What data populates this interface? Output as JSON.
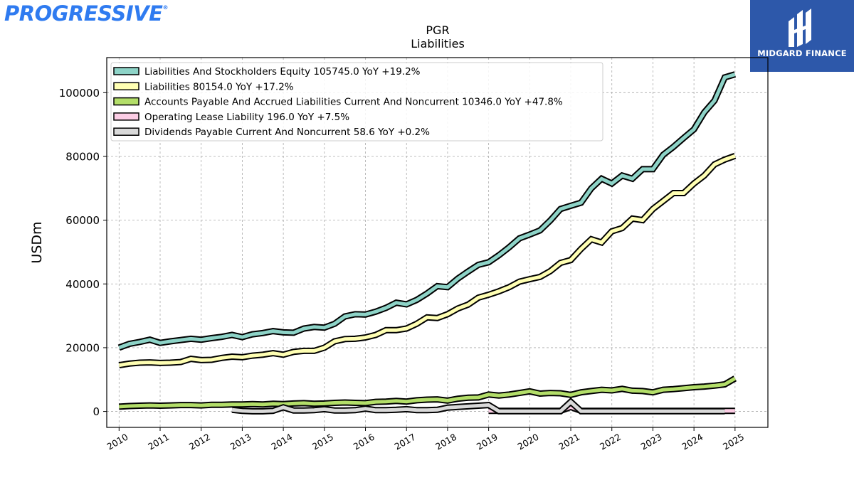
{
  "brand": {
    "logo_text": "PROGRESSIVE",
    "logo_reg": "®",
    "badge_text": "MIDGARD FINANCE"
  },
  "colors": {
    "equity": "#8dd3c7",
    "liabilities": "#ffffb3",
    "accounts_payable": "#b3de69",
    "lease": "#fccde5",
    "dividends": "#d9d9d9",
    "outline": "#000000",
    "badge": "#2d58aa",
    "logo": "#2f7bf0"
  },
  "chart_data": {
    "type": "line",
    "title": "PGR",
    "subtitle": "Liabilities",
    "ylabel": "USDm",
    "xlabel": "",
    "xlim": [
      2009.7,
      2025.8
    ],
    "ylim": [
      -5000,
      111000
    ],
    "yticks": [
      0,
      20000,
      40000,
      60000,
      80000,
      100000
    ],
    "xticks": [
      2010,
      2011,
      2012,
      2013,
      2014,
      2015,
      2016,
      2017,
      2018,
      2019,
      2020,
      2021,
      2022,
      2023,
      2024,
      2025
    ],
    "grid": true,
    "legend_position": "upper-left",
    "series": [
      {
        "name": "Liabilities And Stockholders Equity",
        "legend": "Liabilities And Stockholders Equity  105745.0 YoY +19.2%",
        "color_key": "equity",
        "x": [
          2010.0,
          2010.25,
          2010.5,
          2010.75,
          2011.0,
          2011.25,
          2011.5,
          2011.75,
          2012.0,
          2012.25,
          2012.5,
          2012.75,
          2013.0,
          2013.25,
          2013.5,
          2013.75,
          2014.0,
          2014.25,
          2014.5,
          2014.75,
          2015.0,
          2015.25,
          2015.5,
          2015.75,
          2016.0,
          2016.25,
          2016.5,
          2016.75,
          2017.0,
          2017.25,
          2017.5,
          2017.75,
          2018.0,
          2018.25,
          2018.5,
          2018.75,
          2019.0,
          2019.25,
          2019.5,
          2019.75,
          2020.0,
          2020.25,
          2020.5,
          2020.75,
          2021.0,
          2021.25,
          2021.5,
          2021.75,
          2022.0,
          2022.25,
          2022.5,
          2022.75,
          2023.0,
          2023.25,
          2023.5,
          2023.75,
          2024.0,
          2024.25,
          2024.5,
          2024.75,
          2025.0
        ],
        "y": [
          20000,
          21200,
          21800,
          22500,
          21500,
          22000,
          22400,
          22800,
          22500,
          23000,
          23400,
          24000,
          23300,
          24200,
          24600,
          25200,
          24800,
          24700,
          26000,
          26500,
          26300,
          27500,
          29800,
          30500,
          30400,
          31300,
          32500,
          34100,
          33600,
          35000,
          37000,
          39300,
          39000,
          41700,
          43900,
          46000,
          46800,
          49000,
          51500,
          54300,
          55500,
          56800,
          59900,
          63500,
          64500,
          65500,
          70000,
          73000,
          71500,
          74000,
          73000,
          76000,
          76000,
          80500,
          83000,
          85800,
          88500,
          93800,
          97500,
          104800,
          105745
        ]
      },
      {
        "name": "Liabilities",
        "legend": "Liabilities  80154.0 YoY +17.2%",
        "color_key": "liabilities",
        "x": [
          2010.0,
          2010.25,
          2010.5,
          2010.75,
          2011.0,
          2011.25,
          2011.5,
          2011.75,
          2012.0,
          2012.25,
          2012.5,
          2012.75,
          2013.0,
          2013.25,
          2013.5,
          2013.75,
          2014.0,
          2014.25,
          2014.5,
          2014.75,
          2015.0,
          2015.25,
          2015.5,
          2015.75,
          2016.0,
          2016.25,
          2016.5,
          2016.75,
          2017.0,
          2017.25,
          2017.5,
          2017.75,
          2018.0,
          2018.25,
          2018.5,
          2018.75,
          2019.0,
          2019.25,
          2019.5,
          2019.75,
          2020.0,
          2020.25,
          2020.5,
          2020.75,
          2021.0,
          2021.25,
          2021.5,
          2021.75,
          2022.0,
          2022.25,
          2022.5,
          2022.75,
          2023.0,
          2023.25,
          2023.5,
          2023.75,
          2024.0,
          2024.25,
          2024.5,
          2024.75,
          2025.0
        ],
        "y": [
          14500,
          15000,
          15300,
          15400,
          15200,
          15300,
          15500,
          16500,
          16100,
          16200,
          16800,
          17200,
          17000,
          17500,
          17800,
          18300,
          17800,
          18700,
          19000,
          19000,
          20000,
          22000,
          22700,
          22800,
          23200,
          24000,
          25500,
          25500,
          26000,
          27500,
          29500,
          29300,
          30500,
          32300,
          33500,
          35700,
          36600,
          37700,
          39000,
          40700,
          41500,
          42200,
          44000,
          46600,
          47500,
          51000,
          54000,
          53000,
          56500,
          57500,
          60500,
          60000,
          63500,
          66000,
          68500,
          68500,
          71500,
          74000,
          77500,
          79000,
          80154
        ]
      },
      {
        "name": "Accounts Payable And Accrued Liabilities Current And Noncurrent",
        "legend": "Accounts Payable And Accrued Liabilities Current And Noncurrent  10346.0 YoY +47.8%",
        "color_key": "accounts_payable",
        "x": [
          2010.0,
          2010.25,
          2010.5,
          2010.75,
          2011.0,
          2011.25,
          2011.5,
          2011.75,
          2012.0,
          2012.25,
          2012.5,
          2012.75,
          2013.0,
          2013.25,
          2013.5,
          2013.75,
          2014.0,
          2014.25,
          2014.5,
          2014.75,
          2015.0,
          2015.25,
          2015.5,
          2015.75,
          2016.0,
          2016.25,
          2016.5,
          2016.75,
          2017.0,
          2017.25,
          2017.5,
          2017.75,
          2018.0,
          2018.25,
          2018.5,
          2018.75,
          2019.0,
          2019.25,
          2019.5,
          2019.75,
          2020.0,
          2020.25,
          2020.5,
          2020.75,
          2021.0,
          2021.25,
          2021.5,
          2021.75,
          2022.0,
          2022.25,
          2022.5,
          2022.75,
          2023.0,
          2023.25,
          2023.5,
          2023.75,
          2024.0,
          2024.25,
          2024.5,
          2024.75,
          2025.0
        ],
        "y": [
          1500,
          1700,
          1800,
          1900,
          1800,
          1900,
          2000,
          2000,
          1900,
          2100,
          2100,
          2200,
          2200,
          2300,
          2200,
          2400,
          2300,
          2500,
          2600,
          2400,
          2500,
          2700,
          2800,
          2700,
          2600,
          3000,
          3100,
          3300,
          3100,
          3500,
          3700,
          3800,
          3400,
          4000,
          4300,
          4400,
          5300,
          5000,
          5300,
          5800,
          6300,
          5600,
          5800,
          5700,
          5200,
          6000,
          6400,
          6800,
          6600,
          7100,
          6500,
          6400,
          6000,
          6800,
          7000,
          7300,
          7600,
          7800,
          8100,
          8500,
          10346
        ]
      },
      {
        "name": "Operating Lease Liability",
        "legend": "Operating Lease Liability  196.0 YoY +7.5%",
        "color_key": "lease",
        "x": [
          2019.0,
          2019.25,
          2019.5,
          2019.75,
          2020.0,
          2020.25,
          2020.5,
          2020.75,
          2021.0,
          2021.25,
          2021.5,
          2021.75,
          2022.0,
          2022.25,
          2022.5,
          2022.75,
          2023.0,
          2023.25,
          2023.5,
          2023.75,
          2024.0,
          2024.25,
          2024.5,
          2024.75,
          2025.0
        ],
        "y": [
          180,
          180,
          180,
          180,
          180,
          180,
          180,
          180,
          1400,
          180,
          180,
          180,
          180,
          180,
          180,
          180,
          180,
          180,
          180,
          180,
          180,
          180,
          182,
          185,
          196
        ]
      },
      {
        "name": "Dividends Payable Current And Noncurrent",
        "legend": "Dividends Payable Current And Noncurrent  58.6 YoY +0.2%",
        "color_key": "dividends",
        "x": [
          2012.75,
          2013.0,
          2013.25,
          2013.5,
          2013.75,
          2014.0,
          2014.25,
          2014.5,
          2014.75,
          2015.0,
          2015.25,
          2015.5,
          2015.75,
          2016.0,
          2016.25,
          2016.5,
          2016.75,
          2017.0,
          2017.25,
          2017.5,
          2017.75,
          2018.0,
          2018.25,
          2018.5,
          2018.75,
          2019.0,
          2019.25,
          2019.5,
          2019.75,
          2020.0,
          2020.25,
          2020.5,
          2020.75,
          2021.0,
          2021.25,
          2021.5,
          2021.75,
          2022.0,
          2022.25,
          2022.5,
          2022.75,
          2023.0,
          2023.25,
          2023.5,
          2023.75,
          2024.0,
          2024.25,
          2024.5,
          2024.75
        ],
        "y": [
          500,
          200,
          50,
          50,
          200,
          1300,
          300,
          300,
          400,
          700,
          300,
          300,
          400,
          900,
          400,
          400,
          500,
          700,
          400,
          400,
          500,
          1200,
          1400,
          1600,
          1800,
          2000,
          60,
          60,
          60,
          60,
          60,
          60,
          60,
          3000,
          60,
          60,
          60,
          60,
          60,
          60,
          60,
          60,
          60,
          60,
          60,
          60,
          60,
          60,
          58.6
        ]
      }
    ]
  }
}
